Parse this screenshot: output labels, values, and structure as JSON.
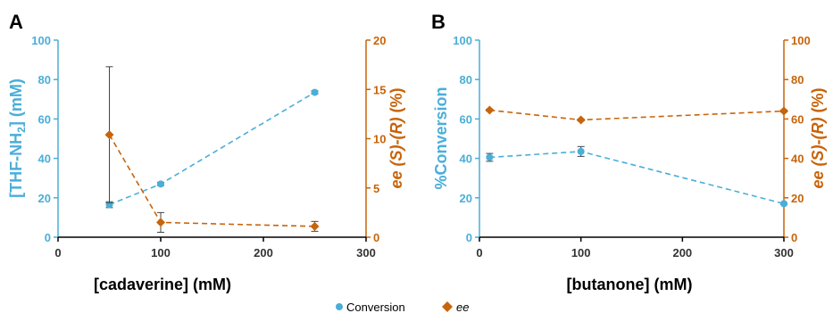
{
  "colors": {
    "conversion": "#4aaed8",
    "ee": "#c8640a",
    "axis_x": "#000000",
    "errorbar": "#444444"
  },
  "legend": {
    "entries": [
      {
        "label": "Conversion",
        "marker": "circle",
        "color": "#4aaed8"
      },
      {
        "label": "ee",
        "marker": "diamond",
        "color": "#c8640a",
        "italic": true
      }
    ],
    "position": "bottom-center"
  },
  "chart_data": [
    {
      "panel": "A",
      "type": "line",
      "dashed": true,
      "xlabel": "[cadaverine] (mM)",
      "xlim": [
        0,
        300
      ],
      "xticks": [
        0,
        100,
        200,
        300
      ],
      "ylabel_left": "[THF-NH2] (mM)",
      "ylim_left": [
        0,
        100
      ],
      "yticks_left": [
        0,
        20,
        40,
        60,
        80,
        100
      ],
      "ylabel_right": "ee (S)-(R) (%)",
      "ylim_right": [
        0,
        20
      ],
      "yticks_right": [
        0,
        5,
        10,
        15,
        20
      ],
      "series": [
        {
          "key": "conversion",
          "axis": "left",
          "marker": "circle",
          "x": [
            50,
            100,
            250
          ],
          "y": [
            16.5,
            27,
            73.5
          ],
          "err": [
            1.5,
            0.8,
            0.8
          ]
        },
        {
          "key": "ee",
          "axis": "right",
          "marker": "diamond",
          "x": [
            50,
            100,
            250
          ],
          "y": [
            10.4,
            1.5,
            1.1
          ],
          "err": [
            6.9,
            1.0,
            0.5
          ]
        }
      ]
    },
    {
      "panel": "B",
      "type": "line",
      "dashed": true,
      "xlabel": "[butanone] (mM)",
      "xlim": [
        0,
        300
      ],
      "xticks": [
        0,
        100,
        200,
        300
      ],
      "ylabel_left": "%Conversion",
      "ylim_left": [
        0,
        100
      ],
      "yticks_left": [
        0,
        20,
        40,
        60,
        80,
        100
      ],
      "ylabel_right": "ee (S)-(R) (%)",
      "ylim_right": [
        0,
        100
      ],
      "yticks_right": [
        0,
        20,
        40,
        60,
        80,
        100
      ],
      "series": [
        {
          "key": "conversion",
          "axis": "left",
          "marker": "circle",
          "x": [
            10,
            100,
            300
          ],
          "y": [
            40.5,
            43.5,
            17
          ],
          "err": [
            2,
            2.5,
            0.5
          ]
        },
        {
          "key": "ee",
          "axis": "right",
          "marker": "diamond",
          "x": [
            10,
            100,
            300
          ],
          "y": [
            64.5,
            59.5,
            64
          ],
          "err": [
            0.5,
            0.5,
            0.5
          ]
        }
      ]
    }
  ]
}
